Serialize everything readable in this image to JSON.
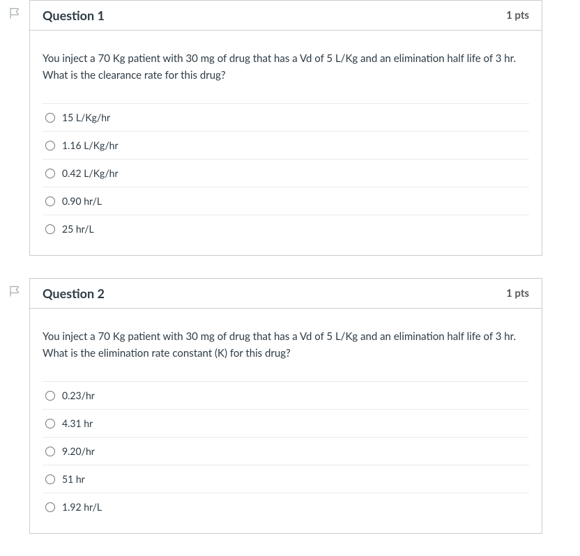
{
  "questions": [
    {
      "title": "Question 1",
      "points": "1 pts",
      "prompt": "You inject a 70 Kg patient with 30 mg of drug that has a Vd of 5 L/Kg and an elimination half life of 3 hr.  What is the clearance rate for this drug?",
      "answers": [
        "15 L/Kg/hr",
        "1.16 L/Kg/hr",
        "0.42 L/Kg/hr",
        "0.90 hr/L",
        "25 hr/L"
      ]
    },
    {
      "title": "Question 2",
      "points": "1 pts",
      "prompt": "You inject a 70 Kg patient with 30 mg of drug that has a Vd of 5 L/Kg and an elimination half life of 3 hr.  What is the elimination rate constant (K) for this drug?",
      "answers": [
        "0.23/hr",
        "4.31 hr",
        "9.20/hr",
        "51 hr",
        "1.92 hr/L"
      ]
    }
  ]
}
